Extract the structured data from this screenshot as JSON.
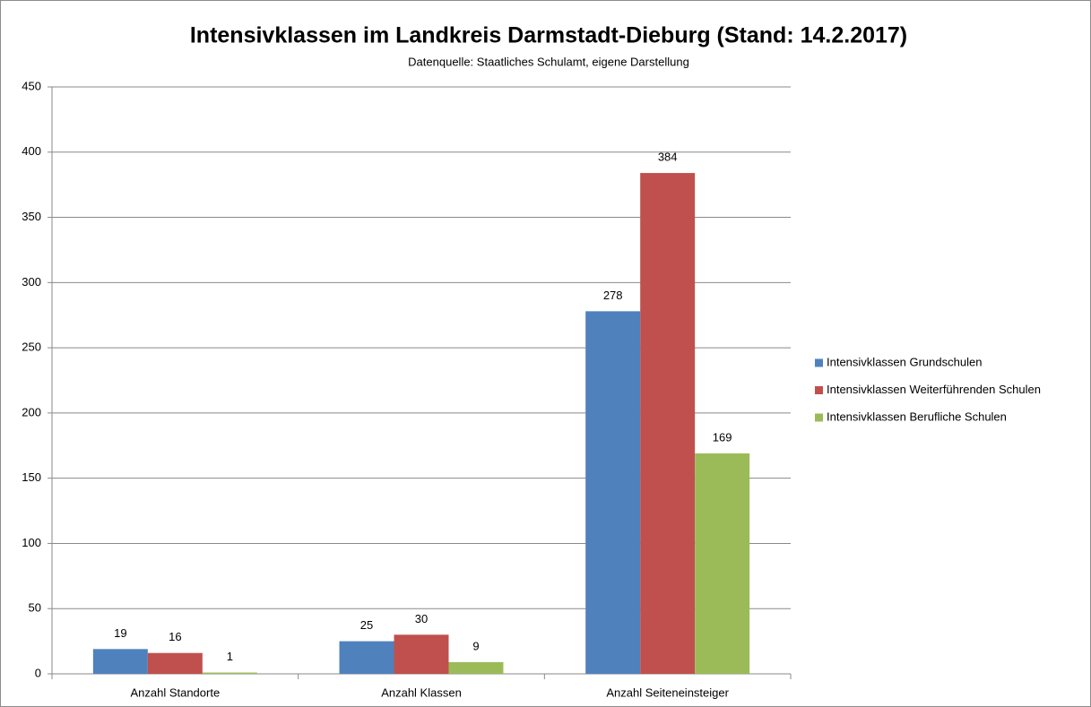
{
  "chart_data": {
    "type": "bar",
    "title": "Intensivklassen im Landkreis Darmstadt-Dieburg (Stand: 14.2.2017)",
    "subtitle": "Datenquelle: Staatliches Schulamt, eigene Darstellung",
    "categories": [
      "Anzahl Standorte",
      "Anzahl Klassen",
      "Anzahl Seiteneinsteiger"
    ],
    "series": [
      {
        "name": "Intensivklassen Grundschulen",
        "color": "#4f81bd",
        "values": [
          19,
          25,
          278
        ]
      },
      {
        "name": "Intensivklassen Weiterführenden Schulen",
        "color": "#c0504d",
        "values": [
          16,
          30,
          384
        ]
      },
      {
        "name": "Intensivklassen Berufliche Schulen",
        "color": "#9bbb59",
        "values": [
          1,
          9,
          169
        ]
      }
    ],
    "ylim": [
      0,
      450
    ],
    "yticks": [
      0,
      50,
      100,
      150,
      200,
      250,
      300,
      350,
      400,
      450
    ],
    "grid": true,
    "legend": "right"
  }
}
